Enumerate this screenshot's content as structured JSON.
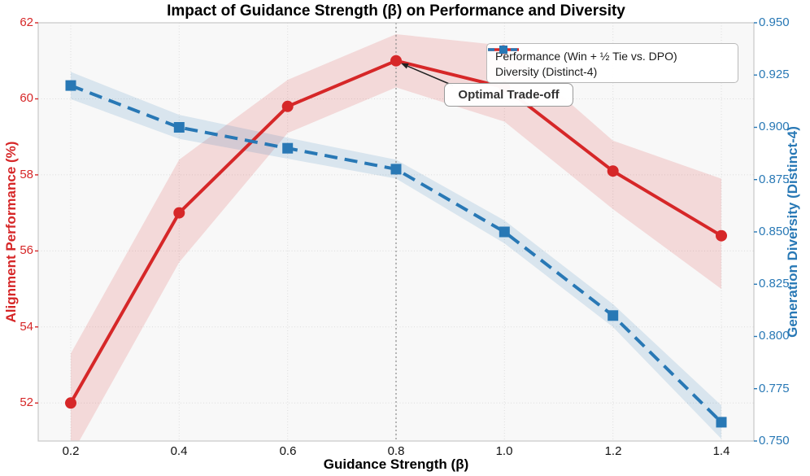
{
  "chart_data": {
    "type": "line",
    "title": "Impact of Guidance Strength (β) on Performance and Diversity",
    "xlabel": "Guidance Strength (β)",
    "ylabel_left": "Alignment Performance (%)",
    "ylabel_right": "Generation Diversity (Distinct-4)",
    "x": [
      0.2,
      0.4,
      0.6,
      0.8,
      1.0,
      1.2,
      1.4
    ],
    "x_tick_labels": [
      "0.2",
      "0.4",
      "0.6",
      "0.8",
      "1.0",
      "1.2",
      "1.4"
    ],
    "xlim": [
      0.14,
      1.46
    ],
    "ylim_left": [
      51,
      62
    ],
    "yticks_left": [
      52,
      54,
      56,
      58,
      60,
      62
    ],
    "ylim_right": [
      0.75,
      0.95
    ],
    "yticks_right": [
      "0.750",
      "0.775",
      "0.800",
      "0.825",
      "0.850",
      "0.875",
      "0.900",
      "0.925",
      "0.950"
    ],
    "grid": true,
    "legend_position": "upper right",
    "series": [
      {
        "name": "Performance (Win + ½ Tie vs. DPO)",
        "axis": "left",
        "line": "solid",
        "marker": "circle",
        "values": [
          52.0,
          57.0,
          59.8,
          61.0,
          60.3,
          58.1,
          56.4
        ],
        "band_upper": [
          53.3,
          58.4,
          60.5,
          61.7,
          61.4,
          58.9,
          57.9
        ],
        "band_lower": [
          50.6,
          55.7,
          59.1,
          60.3,
          59.4,
          57.1,
          55.0
        ]
      },
      {
        "name": "Diversity (Distinct-4)",
        "axis": "right",
        "line": "dashed",
        "marker": "square",
        "values": [
          0.92,
          0.9,
          0.89,
          0.88,
          0.85,
          0.81,
          0.759
        ],
        "band_upper": [
          0.9265,
          0.906,
          0.895,
          0.8845,
          0.8555,
          0.8155,
          0.767
        ],
        "band_lower": [
          0.9135,
          0.8945,
          0.885,
          0.8755,
          0.8445,
          0.8045,
          0.751
        ]
      }
    ],
    "annotation": {
      "label": "Optimal Trade-off",
      "target_x": 0.8,
      "target_y": 61.0
    },
    "vline_x": 0.8
  },
  "colors": {
    "performance": "#d62728",
    "diversity": "#2878b5",
    "band_opacity": "0.15",
    "grid": "#dcdcdc",
    "spine": "#c8c8c8",
    "plot_bg": "#f8f8f8",
    "vline": "#8a8a8a",
    "title_text": "#000000",
    "annotation_text": "#333333"
  }
}
